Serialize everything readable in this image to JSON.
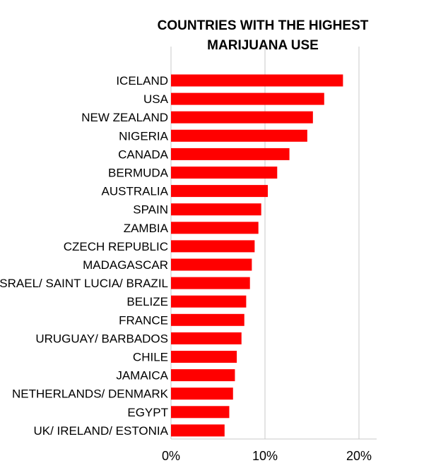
{
  "chart_data": {
    "type": "bar",
    "orientation": "horizontal",
    "title_lines": [
      "COUNTRIES WITH THE HIGHEST",
      "MARIJUANA USE"
    ],
    "categories": [
      "ICELAND",
      "USA",
      "NEW ZEALAND",
      "NIGERIA",
      "CANADA",
      "BERMUDA",
      "AUSTRALIA",
      "SPAIN",
      "ZAMBIA",
      "CZECH REPUBLIC",
      "MADAGASCAR",
      "ISRAEL/ SAINT LUCIA/ BRAZIL",
      "BELIZE",
      "FRANCE",
      "URUGUAY/ BARBADOS",
      "CHILE",
      "JAMAICA",
      "NETHERLANDS/ DENMARK",
      "EGYPT",
      "UK/ IRELAND/ ESTONIA"
    ],
    "values": [
      18.3,
      16.3,
      15.1,
      14.5,
      12.6,
      11.3,
      10.3,
      9.6,
      9.3,
      8.9,
      8.6,
      8.4,
      8.0,
      7.8,
      7.5,
      7.0,
      6.8,
      6.6,
      6.2,
      5.7
    ],
    "value_unit": "%",
    "xlim": [
      0,
      22
    ],
    "x_ticks": [
      0,
      10,
      20
    ],
    "x_tick_labels": [
      "0%",
      "10%",
      "20%"
    ],
    "grid": true,
    "bar_color": "#ff0000",
    "grid_color": "#c8c8c8",
    "xlabel": "",
    "ylabel": ""
  }
}
